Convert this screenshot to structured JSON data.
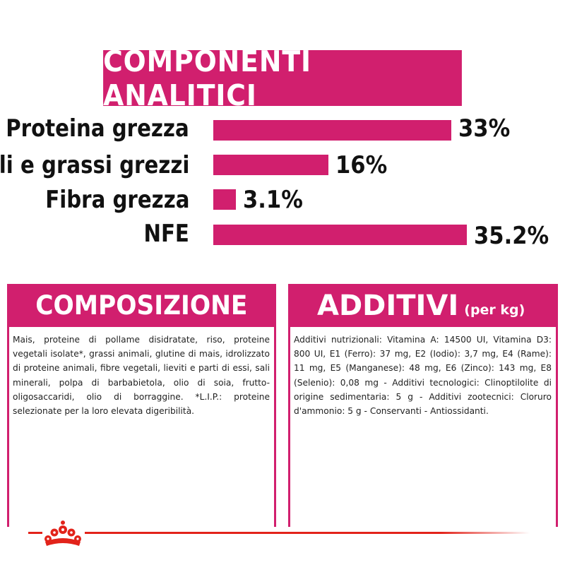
{
  "title": "COMPONENTI ANALITICI",
  "analytics": [
    {
      "label": "Proteina grezza",
      "value_text": "33%",
      "value": 33
    },
    {
      "label": "Oli e grassi grezzi",
      "value_text": "16%",
      "value": 16
    },
    {
      "label": "Fibra grezza",
      "value_text": "3.1%",
      "value": 3.1
    },
    {
      "label": "NFE",
      "value_text": "35.2%",
      "value": 35.2
    }
  ],
  "composition": {
    "heading": "COMPOSIZIONE",
    "text": "Mais, proteine di pollame disidratate, riso, proteine vegetali isolate*, grassi animali, glutine di mais, idrolizzato di proteine animali, fibre vegetali, lieviti e parti di essi, sali minerali, polpa di barbabietola, olio di soia, frutto-oligosaccaridi, olio di borraggine. *L.I.P.: proteine selezionate per la loro elevata digeribilità."
  },
  "additives": {
    "heading": "ADDITIVI",
    "heading_suffix": "(per kg)",
    "text": "Additivi nutrizionali: Vitamina A: 14500 UI, Vitamina D3: 800 UI, E1 (Ferro): 37 mg, E2 (Iodio): 3,7 mg, E4 (Rame): 11 mg, E5 (Manganese): 48 mg, E6 (Zinco): 143 mg, E8 (Selenio): 0,08 mg - Additivi tecnologici: Clinoptilolite di origine sedimentaria: 5 g - Additivi zootecnici: Cloruro d'ammonio: 5 g - Conservanti - Antiossidanti."
  },
  "colors": {
    "accent": "#d11f6e",
    "brand_red": "#e2231a"
  },
  "logo_icon": "royal-canin-crown-icon"
}
